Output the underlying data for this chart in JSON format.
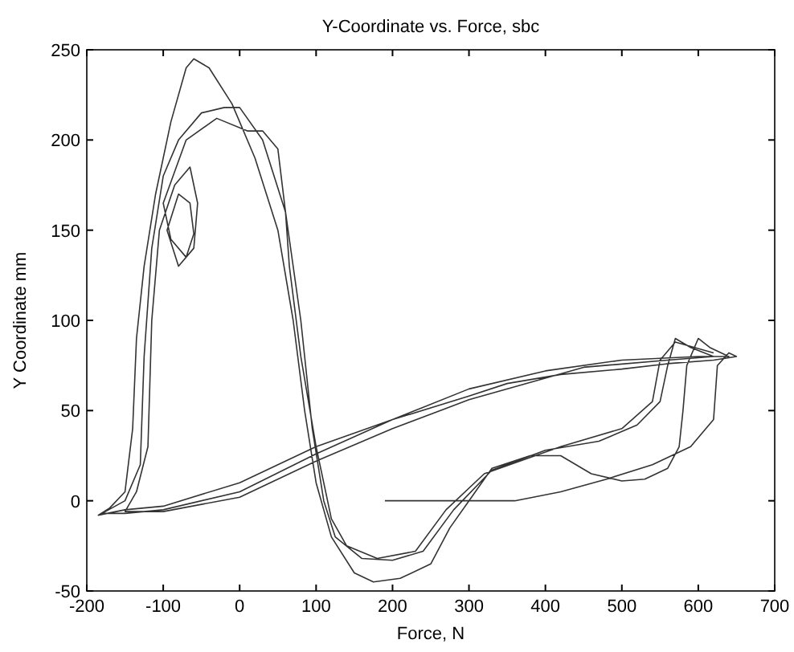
{
  "chart_data": {
    "type": "line",
    "title": "Y-Coordinate vs. Force, sbc",
    "xlabel": "Force, N",
    "ylabel": "Y Coordinate mm",
    "xlim": [
      -200,
      700
    ],
    "xticks": [
      -200,
      -100,
      0,
      100,
      200,
      300,
      400,
      500,
      600,
      700
    ],
    "ylim": [
      -50,
      250
    ],
    "yticks": [
      -50,
      0,
      50,
      100,
      150,
      200,
      250
    ],
    "grid": false,
    "marker": "none",
    "line_style": "solid",
    "series": [
      {
        "color": "#333333",
        "x": [
          190,
          250,
          300,
          360,
          420,
          480,
          540,
          590,
          620,
          625,
          640,
          650,
          620,
          560,
          500,
          420,
          350,
          300,
          200,
          100,
          0,
          -100,
          -150,
          -185,
          -170,
          -150,
          -140,
          -135,
          -125,
          -110,
          -90,
          -70,
          -60,
          -40,
          -10,
          20,
          50,
          70,
          85,
          100,
          120,
          150,
          175,
          210,
          250,
          275,
          300,
          330,
          380,
          420,
          460,
          500,
          530,
          560,
          575,
          580,
          585,
          600,
          615,
          640,
          600,
          500,
          400,
          300,
          200,
          100,
          0,
          -100,
          -150,
          -180,
          -150,
          -130,
          -125,
          -115,
          -100,
          -80,
          -50,
          -20,
          0,
          30,
          60,
          80,
          95,
          110,
          125,
          160,
          200,
          240,
          280,
          330,
          400,
          470,
          520,
          550,
          560,
          570,
          590,
          620,
          560,
          450,
          300,
          200,
          100,
          0,
          -100,
          -150,
          -135,
          -120,
          -115,
          -105,
          -85,
          -65,
          -55,
          -60,
          -80,
          -95,
          -80,
          -65,
          -60,
          -70,
          -90,
          -100,
          -70,
          -30,
          10,
          30,
          50,
          60,
          65,
          80,
          100,
          120,
          140,
          180,
          230,
          270,
          320,
          420,
          500,
          540,
          550,
          570,
          620
        ],
        "values": [
          0,
          0,
          0,
          0,
          5,
          12,
          20,
          30,
          45,
          75,
          82,
          80,
          78,
          76,
          73,
          70,
          65,
          58,
          45,
          30,
          10,
          -3,
          -5,
          -8,
          -4,
          5,
          40,
          90,
          130,
          170,
          210,
          240,
          245,
          240,
          220,
          190,
          150,
          100,
          50,
          10,
          -20,
          -40,
          -45,
          -43,
          -35,
          -15,
          0,
          18,
          25,
          25,
          15,
          11,
          12,
          18,
          30,
          50,
          75,
          90,
          85,
          80,
          80,
          78,
          72,
          62,
          45,
          26,
          5,
          -5,
          -7,
          -7,
          0,
          20,
          80,
          140,
          180,
          200,
          215,
          218,
          218,
          200,
          160,
          100,
          40,
          0,
          -20,
          -32,
          -33,
          -28,
          -5,
          17,
          28,
          33,
          42,
          55,
          75,
          90,
          85,
          80,
          78,
          74,
          56,
          40,
          22,
          2,
          -6,
          -6,
          5,
          30,
          100,
          150,
          175,
          185,
          165,
          140,
          130,
          150,
          170,
          165,
          148,
          135,
          145,
          165,
          200,
          212,
          205,
          205,
          195,
          160,
          130,
          80,
          30,
          -10,
          -25,
          -32,
          -28,
          -5,
          15,
          30,
          40,
          55,
          78,
          88,
          82
        ]
      }
    ]
  }
}
